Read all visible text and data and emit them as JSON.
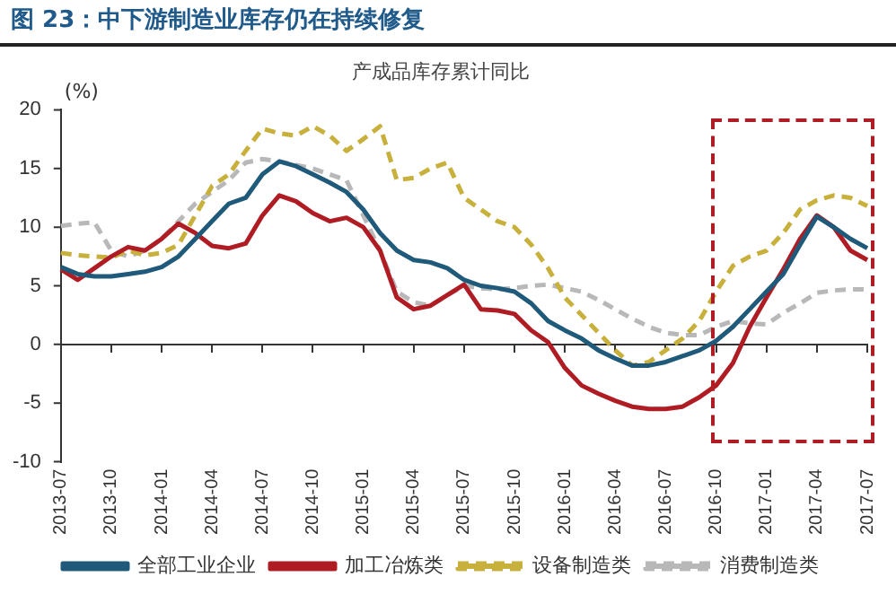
{
  "chart_data": {
    "type": "line",
    "title": "图 23：中下游制造业库存仍在持续修复",
    "subtitle": "产成品库存累计同比",
    "ylabel": "(%)",
    "categories": [
      "2013-07",
      null,
      null,
      "2013-10",
      null,
      null,
      "2014-01",
      null,
      null,
      "2014-04",
      null,
      null,
      "2014-07",
      null,
      null,
      "2014-10",
      null,
      null,
      "2015-01",
      null,
      null,
      "2015-04",
      null,
      null,
      "2015-07",
      null,
      null,
      "2015-10",
      null,
      null,
      "2016-01",
      null,
      null,
      "2016-04",
      null,
      null,
      "2016-07",
      null,
      null,
      "2016-10",
      null,
      null,
      "2017-01",
      null,
      null,
      "2017-04",
      null,
      null,
      "2017-07"
    ],
    "series": [
      {
        "name": "全部工业企业",
        "color": "#1f5a7a",
        "line_style": "solid",
        "values": [
          6.6,
          6.0,
          5.8,
          5.8,
          6.0,
          6.2,
          6.6,
          7.5,
          9,
          10.5,
          12,
          12.5,
          14.5,
          15.6,
          15.2,
          14.5,
          13.8,
          13,
          11.5,
          9.5,
          8,
          7.2,
          7,
          6.5,
          5.5,
          5,
          4.8,
          4.5,
          3.5,
          2,
          1.2,
          0.5,
          -0.5,
          -1.2,
          -1.8,
          -1.8,
          -1.5,
          -1,
          -0.5,
          0.3,
          1.5,
          3,
          4.5,
          6,
          8.5,
          10.9,
          10,
          9,
          8.2
        ]
      },
      {
        "name": "加工冶炼类",
        "color": "#b01c23",
        "line_style": "solid",
        "values": [
          6.4,
          5.5,
          6.5,
          7.5,
          8.3,
          8,
          9,
          10.3,
          9.5,
          8.4,
          8.2,
          8.6,
          11,
          12.7,
          12.2,
          11.2,
          10.5,
          10.8,
          10,
          8,
          4,
          3,
          3.3,
          4.2,
          5.1,
          3,
          2.9,
          2.6,
          1.2,
          0.2,
          -2,
          -3.5,
          -4.2,
          -4.8,
          -5.3,
          -5.5,
          -5.5,
          -5.3,
          -4.5,
          -3.5,
          -1.6,
          1.5,
          4,
          6.4,
          9,
          11,
          10,
          8,
          7.2
        ]
      },
      {
        "name": "设备制造类",
        "color": "#c8b03c",
        "line_style": "dashed",
        "values": [
          7.8,
          7.6,
          7.5,
          7.4,
          8,
          7.6,
          7.8,
          8.5,
          11,
          13.5,
          14.5,
          16.5,
          18.4,
          18,
          17.8,
          18.6,
          17.8,
          16.5,
          17.5,
          18.6,
          14,
          14.2,
          15,
          15.5,
          12.5,
          11.5,
          10.5,
          10,
          8.5,
          6.5,
          4,
          2.5,
          1,
          -0.5,
          -1.8,
          -1.5,
          -0.5,
          0.5,
          2,
          4.5,
          6.7,
          7.5,
          8,
          9.5,
          11.5,
          12.3,
          12.7,
          12.5,
          11.8
        ]
      },
      {
        "name": "消费制造类",
        "color": "#b8b8b8",
        "line_style": "dashed",
        "values": [
          10.1,
          10.3,
          10.4,
          8,
          7.5,
          8,
          9,
          10.5,
          12,
          13,
          14,
          15.5,
          15.8,
          15.6,
          15.3,
          15,
          14.5,
          14,
          11,
          8,
          4.5,
          3.6,
          3.3,
          4.2,
          5,
          4.8,
          4.7,
          4.8,
          5,
          5.1,
          4.8,
          4.5,
          3.8,
          3,
          2.2,
          1.5,
          1,
          0.8,
          0.8,
          1.5,
          2,
          1.8,
          1.7,
          2.7,
          3.5,
          4.4,
          4.6,
          4.7,
          4.7
        ]
      }
    ],
    "ref_lines": [
      {
        "axis": "y",
        "value": 0,
        "color": "#333333"
      }
    ],
    "ylim": [
      -10,
      20
    ],
    "yticks": [
      -10,
      -5,
      0,
      5,
      10,
      15,
      20
    ],
    "grid": false,
    "legend": "bottom",
    "marker": "none"
  }
}
